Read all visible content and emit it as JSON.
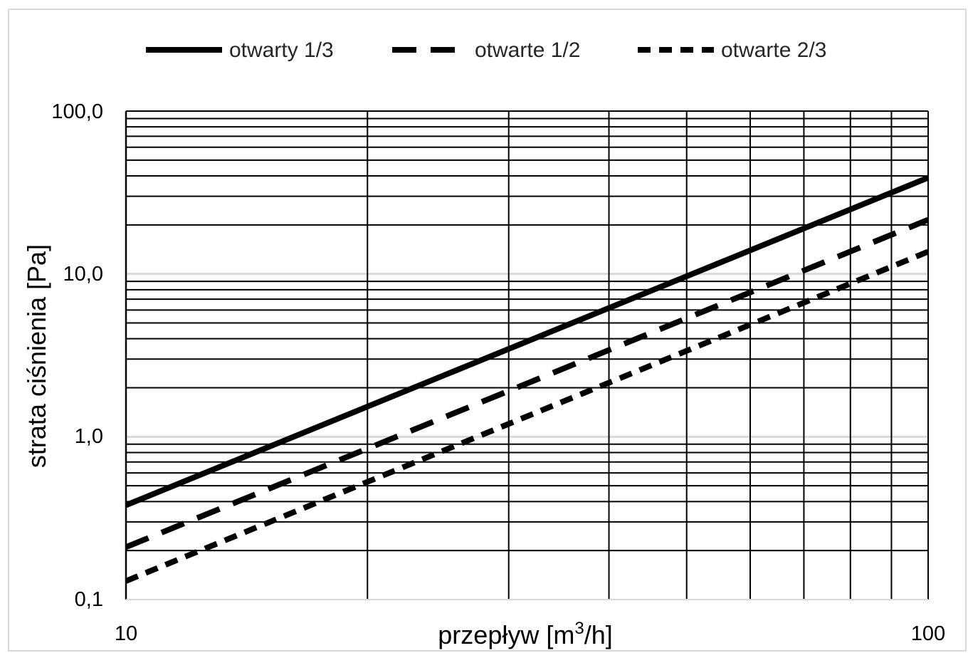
{
  "chart_data": {
    "type": "line",
    "title": "",
    "xlabel": "przepływ [m³/h]",
    "xlabel_base": "przepływ [m",
    "xlabel_sup": "3",
    "xlabel_tail": "/h]",
    "ylabel": "strata ciśnienia [Pa]",
    "xscale": "log",
    "yscale": "log",
    "xlim": [
      10,
      100
    ],
    "ylim": [
      0.1,
      100
    ],
    "x_tick_labels": [
      "10",
      "100"
    ],
    "y_tick_labels": [
      "0,1",
      "1,0",
      "10,0",
      "100,0"
    ],
    "grid": true,
    "legend_position": "top",
    "x": [
      10,
      100
    ],
    "series": [
      {
        "name": "otwarty 1/3",
        "style": "solid",
        "values": [
          0.38,
          39
        ]
      },
      {
        "name": "otwarte 1/2",
        "style": "long-dash",
        "values": [
          0.21,
          21.5
        ]
      },
      {
        "name": "otwarte 2/3",
        "style": "short-dash",
        "values": [
          0.13,
          13.7
        ]
      }
    ],
    "colors": {
      "line": "#000000",
      "grid": "#000000",
      "major_grid": "#d9d9d9",
      "frame": "#d9d9d9"
    }
  }
}
